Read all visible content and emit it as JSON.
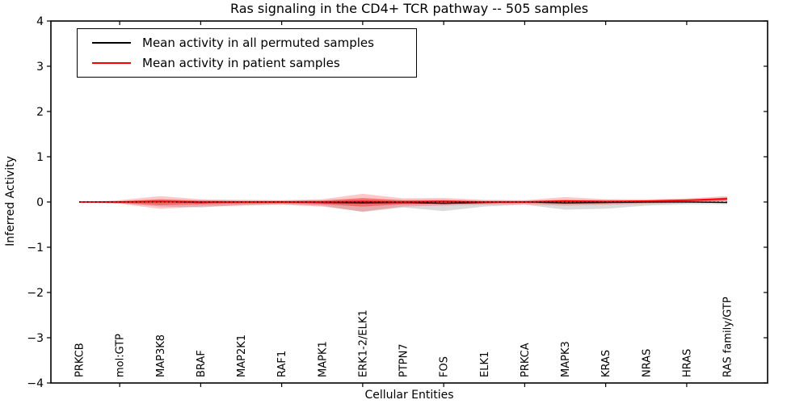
{
  "title": "Ras signaling in the CD4+ TCR pathway -- 505 samples",
  "axes": {
    "xlabel": "Cellular Entities",
    "ylabel": "Inferred Activity"
  },
  "legend": {
    "entries": [
      {
        "label": "Mean activity in all permuted samples",
        "color": "#000000"
      },
      {
        "label": "Mean activity in patient samples",
        "color": "#ff0000"
      }
    ]
  },
  "chart_data": {
    "type": "line",
    "title": "Ras signaling in the CD4+ TCR pathway -- 505 samples",
    "xlabel": "Cellular Entities",
    "ylabel": "Inferred Activity",
    "ylim": [
      -4,
      4
    ],
    "yticks": [
      "4",
      "3",
      "2",
      "1",
      "0",
      "−1",
      "−2",
      "−3",
      "−4"
    ],
    "ytick_values": [
      4,
      3,
      2,
      1,
      0,
      -1,
      -2,
      -3,
      -4
    ],
    "xtick_mark_indices": [
      1,
      3,
      5,
      7,
      9,
      11,
      13,
      15
    ],
    "grid": false,
    "legend_position": "upper left",
    "categories": [
      "PRKCB",
      "mol:GTP",
      "MAP3K8",
      "BRAF",
      "MAP2K1",
      "RAF1",
      "MAPK1",
      "ERK1-2/ELK1",
      "PTPN7",
      "FOS",
      "ELK1",
      "PRKCA",
      "MAPK3",
      "KRAS",
      "NRAS",
      "HRAS",
      "RAS family/GTP"
    ],
    "series": [
      {
        "name": "Mean activity in all permuted samples",
        "color": "#000000",
        "values": [
          0,
          0,
          0.01,
          -0.01,
          0,
          0,
          -0.01,
          -0.02,
          -0.01,
          -0.03,
          -0.01,
          0,
          -0.02,
          -0.01,
          0,
          0,
          -0.01
        ]
      },
      {
        "name": "Mean activity in patient samples",
        "color": "#ff0000",
        "values": [
          0,
          0,
          0.01,
          0,
          0,
          0,
          0,
          0.01,
          0,
          0.01,
          0,
          0,
          0.02,
          0.01,
          0.02,
          0.04,
          0.07
        ]
      },
      {
        "name": "zero reference",
        "color": "#000000",
        "style": "dotted",
        "values": [
          0,
          0,
          0,
          0,
          0,
          0,
          0,
          0,
          0,
          0,
          0,
          0,
          0,
          0,
          0,
          0,
          0
        ]
      }
    ],
    "bands": [
      {
        "name": "permuted samples spread",
        "color": "rgba(90,90,90,0.22)",
        "upper": [
          0,
          0.02,
          0.05,
          0.04,
          0.03,
          0.03,
          0.04,
          0.06,
          0.04,
          0.05,
          0.03,
          0.03,
          0.04,
          0.05,
          0.03,
          0.03,
          0.04
        ],
        "lower": [
          0,
          -0.03,
          -0.1,
          -0.12,
          -0.07,
          -0.05,
          -0.08,
          -0.22,
          -0.12,
          -0.2,
          -0.1,
          -0.06,
          -0.17,
          -0.15,
          -0.08,
          -0.05,
          -0.05
        ]
      },
      {
        "name": "patient samples outer spread",
        "color": "rgba(255,0,0,0.22)",
        "upper": [
          0,
          0.04,
          0.13,
          0.06,
          0.05,
          0.04,
          0.06,
          0.18,
          0.08,
          0.09,
          0.05,
          0.04,
          0.11,
          0.06,
          0.06,
          0.08,
          0.13
        ],
        "lower": [
          0,
          -0.04,
          -0.15,
          -0.1,
          -0.08,
          -0.06,
          -0.1,
          -0.21,
          -0.1,
          -0.08,
          -0.06,
          -0.05,
          -0.08,
          -0.06,
          -0.04,
          -0.02,
          0.02
        ]
      },
      {
        "name": "patient samples inner spread",
        "color": "rgba(255,0,0,0.38)",
        "upper": [
          0,
          0.02,
          0.06,
          0.03,
          0.02,
          0.02,
          0.03,
          0.09,
          0.04,
          0.04,
          0.02,
          0.02,
          0.05,
          0.03,
          0.03,
          0.05,
          0.1
        ],
        "lower": [
          0,
          -0.02,
          -0.07,
          -0.05,
          -0.04,
          -0.03,
          -0.05,
          -0.1,
          -0.05,
          -0.04,
          -0.03,
          -0.02,
          -0.04,
          -0.03,
          -0.02,
          0.0,
          0.04
        ]
      }
    ]
  }
}
